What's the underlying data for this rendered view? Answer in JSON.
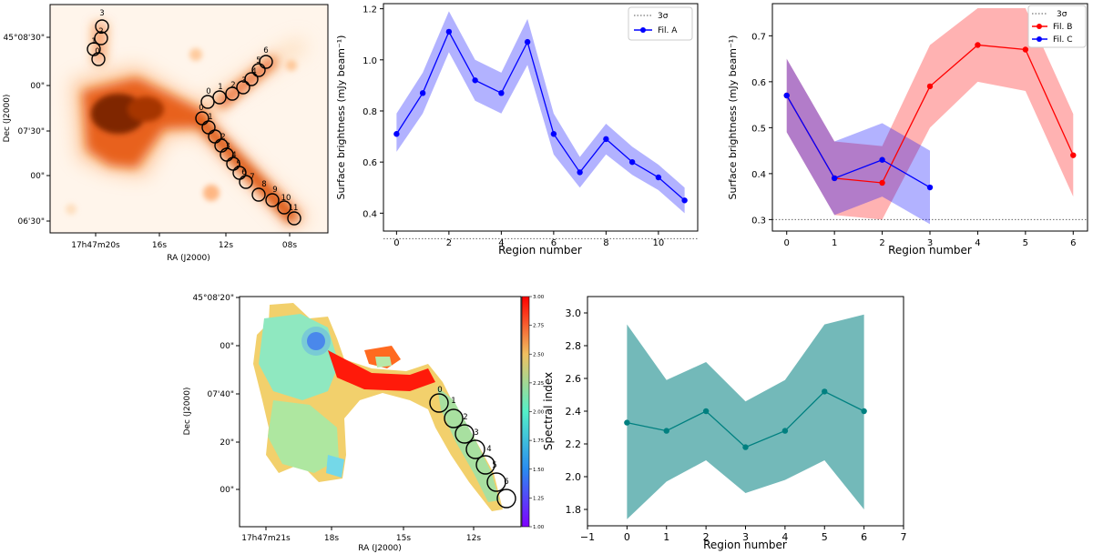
{
  "chart_data": [
    {
      "id": "map1",
      "type": "image-map",
      "colormap": "Oranges",
      "xlabel": "RA (J2000)",
      "ylabel": "Dec (J2000)",
      "xticks": [
        "17h47m20s",
        "16s",
        "12s",
        "08s"
      ],
      "yticks": [
        "45°08'30\"",
        "00\"",
        "07'30\"",
        "00\"",
        "06'30\""
      ],
      "region_groups": [
        {
          "name": "Fil. A",
          "labels": [
            "0",
            "1",
            "2",
            "3",
            "4",
            "5",
            "6",
            "7",
            "8",
            "9",
            "10",
            "11"
          ]
        },
        {
          "name": "Fil. B",
          "labels": [
            "0",
            "1",
            "2",
            "3",
            "4",
            "5",
            "6"
          ]
        },
        {
          "name": "Fil. C",
          "labels": [
            "0",
            "1",
            "2",
            "3"
          ]
        }
      ]
    },
    {
      "id": "fila",
      "type": "line",
      "xlabel": "Region number",
      "ylabel": "Surface brightness (mJy beam⁻¹)",
      "xlim": [
        -0.5,
        11.5
      ],
      "ylim": [
        0.33,
        1.22
      ],
      "xticks": [
        0,
        2,
        4,
        6,
        8,
        10
      ],
      "yticks": [
        0.4,
        0.6,
        0.8,
        1.0,
        1.2
      ],
      "threshold": {
        "value": 0.3,
        "label": "3σ"
      },
      "series": [
        {
          "name": "Fil. A",
          "color": "#0000ff",
          "x": [
            0,
            1,
            2,
            3,
            4,
            5,
            6,
            7,
            8,
            9,
            10,
            11
          ],
          "values": [
            0.71,
            0.87,
            1.11,
            0.92,
            0.87,
            1.07,
            0.71,
            0.56,
            0.69,
            0.6,
            0.54,
            0.45
          ],
          "lower": [
            0.64,
            0.79,
            1.03,
            0.84,
            0.79,
            0.98,
            0.63,
            0.5,
            0.63,
            0.55,
            0.49,
            0.4
          ],
          "upper": [
            0.79,
            0.95,
            1.19,
            1.0,
            0.95,
            1.16,
            0.79,
            0.62,
            0.75,
            0.66,
            0.59,
            0.5
          ]
        }
      ],
      "legend": "top-right"
    },
    {
      "id": "filbc",
      "type": "line",
      "xlabel": "Region number",
      "ylabel": "Surface brightness (mJy beam⁻¹)",
      "xlim": [
        -0.3,
        6.3
      ],
      "ylim": [
        0.275,
        0.77
      ],
      "xticks": [
        0,
        1,
        2,
        3,
        4,
        5,
        6
      ],
      "yticks": [
        0.3,
        0.4,
        0.5,
        0.6,
        0.7
      ],
      "threshold": {
        "value": 0.3,
        "label": "3σ"
      },
      "series": [
        {
          "name": "Fil. B",
          "color": "#ff0000",
          "x": [
            0,
            1,
            2,
            3,
            4,
            5,
            6
          ],
          "values": [
            0.57,
            0.39,
            0.38,
            0.59,
            0.68,
            0.67,
            0.44
          ],
          "lower": [
            0.49,
            0.31,
            0.3,
            0.5,
            0.6,
            0.58,
            0.35
          ],
          "upper": [
            0.65,
            0.47,
            0.46,
            0.68,
            0.76,
            0.76,
            0.53
          ]
        },
        {
          "name": "Fil. C",
          "color": "#0000ff",
          "x": [
            0,
            1,
            2,
            3
          ],
          "values": [
            0.57,
            0.39,
            0.43,
            0.37
          ],
          "lower": [
            0.49,
            0.31,
            0.35,
            0.29
          ],
          "upper": [
            0.65,
            0.47,
            0.51,
            0.45
          ]
        }
      ],
      "legend": "top-right"
    },
    {
      "id": "map2",
      "type": "image-map",
      "colormap": "rainbow",
      "xlabel": "RA (J2000)",
      "ylabel": "Dec (J2000)",
      "xticks": [
        "17h47m21s",
        "18s",
        "15s",
        "12s"
      ],
      "yticks": [
        "45°08'20\"",
        "00\"",
        "07'40\"",
        "20\"",
        "00\""
      ],
      "colorbar_ticks": [
        "1.00",
        "1.25",
        "1.50",
        "1.75",
        "2.00",
        "2.25",
        "2.50",
        "2.75",
        "3.00"
      ],
      "region_labels": [
        "0",
        "1",
        "2",
        "3",
        "4",
        "5",
        "6"
      ]
    },
    {
      "id": "spec",
      "type": "line",
      "xlabel": "Region number",
      "ylabel": "Spectral index",
      "xlim": [
        -1,
        7
      ],
      "ylim": [
        1.7,
        3.1
      ],
      "xticks": [
        -1,
        0,
        1,
        2,
        3,
        4,
        5,
        6,
        7
      ],
      "yticks": [
        1.8,
        2.0,
        2.2,
        2.4,
        2.6,
        2.8,
        3.0
      ],
      "series": [
        {
          "name": "Spectral index",
          "color": "#008080",
          "x": [
            0,
            1,
            2,
            3,
            4,
            5,
            6
          ],
          "values": [
            2.33,
            2.28,
            2.4,
            2.18,
            2.28,
            2.52,
            2.4
          ],
          "lower": [
            1.74,
            1.97,
            2.1,
            1.9,
            1.98,
            2.1,
            1.8
          ],
          "upper": [
            2.93,
            2.59,
            2.7,
            2.46,
            2.59,
            2.93,
            2.99
          ]
        }
      ]
    }
  ]
}
